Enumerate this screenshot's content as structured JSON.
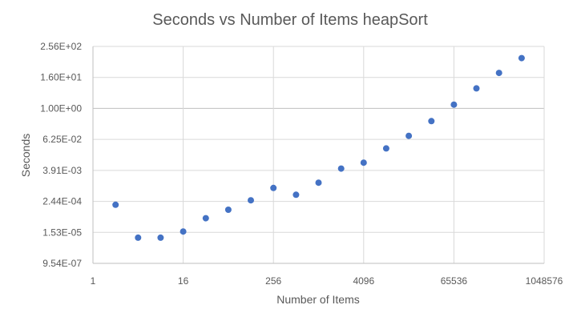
{
  "chart_data": {
    "type": "scatter",
    "title": "Seconds vs Number of Items heapSort",
    "xlabel": "Number of Items",
    "ylabel": "Seconds",
    "x_scale": "log2",
    "y_scale": "log16",
    "xlim": [
      1,
      1048576
    ],
    "ylim": [
      9.54e-07,
      256
    ],
    "x_ticks": [
      "1",
      "16",
      "256",
      "4096",
      "65536",
      "1048576"
    ],
    "y_ticks": [
      "9.54E-07",
      "1.53E-05",
      "2.44E-04",
      "3.91E-03",
      "6.25E-02",
      "1.00E+00",
      "1.60E+01",
      "2.56E+02"
    ],
    "grid": true,
    "legend": "none",
    "marker_color": "#4472C4",
    "gridline_color": "#D9D9D9",
    "series": [
      {
        "points": [
          {
            "x": 2,
            "y": 0.00018
          },
          {
            "x": 4,
            "y": 9.5e-06
          },
          {
            "x": 8,
            "y": 9.5e-06
          },
          {
            "x": 16,
            "y": 1.65e-05
          },
          {
            "x": 32,
            "y": 5.4e-05
          },
          {
            "x": 64,
            "y": 0.000116
          },
          {
            "x": 128,
            "y": 0.00027
          },
          {
            "x": 256,
            "y": 0.00081
          },
          {
            "x": 512,
            "y": 0.00044
          },
          {
            "x": 1024,
            "y": 0.0013
          },
          {
            "x": 2048,
            "y": 0.0046
          },
          {
            "x": 4096,
            "y": 0.0078
          },
          {
            "x": 8192,
            "y": 0.028
          },
          {
            "x": 16384,
            "y": 0.086
          },
          {
            "x": 32768,
            "y": 0.32
          },
          {
            "x": 65536,
            "y": 1.4
          },
          {
            "x": 131072,
            "y": 6.0
          },
          {
            "x": 262144,
            "y": 24
          },
          {
            "x": 524288,
            "y": 90
          }
        ]
      }
    ]
  }
}
